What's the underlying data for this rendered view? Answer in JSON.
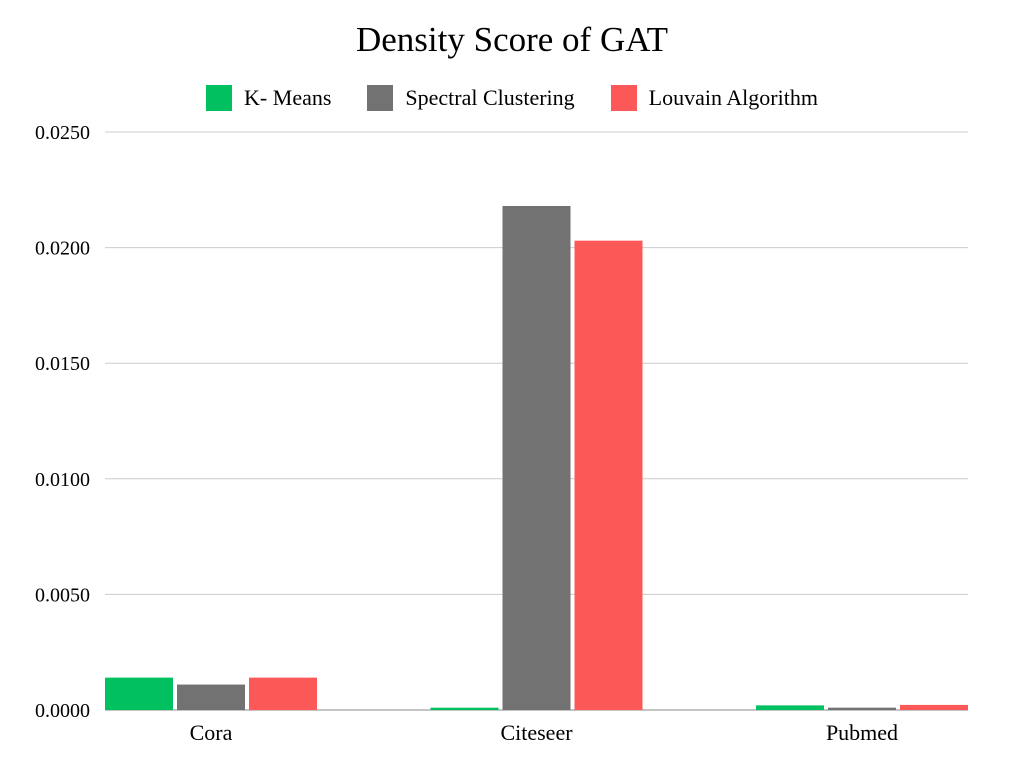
{
  "chart_data": {
    "type": "bar",
    "title": "Density Score of GAT",
    "categories": [
      "Cora",
      "Citeseer",
      "Pubmed"
    ],
    "series": [
      {
        "name": "K- Means",
        "color": "#00c060",
        "values": [
          0.0014,
          0.0001,
          0.0002
        ]
      },
      {
        "name": "Spectral Clustering",
        "color": "#727272",
        "values": [
          0.0011,
          0.0218,
          0.0001
        ]
      },
      {
        "name": "Louvain Algorithm",
        "color": "#fd5858",
        "values": [
          0.0014,
          0.0203,
          0.00022
        ]
      }
    ],
    "ylim": [
      0,
      0.025
    ],
    "yticks": [
      "0.0000",
      "0.0050",
      "0.0100",
      "0.0150",
      "0.0200",
      "0.0250"
    ],
    "grid": true,
    "legend_position": "top"
  }
}
